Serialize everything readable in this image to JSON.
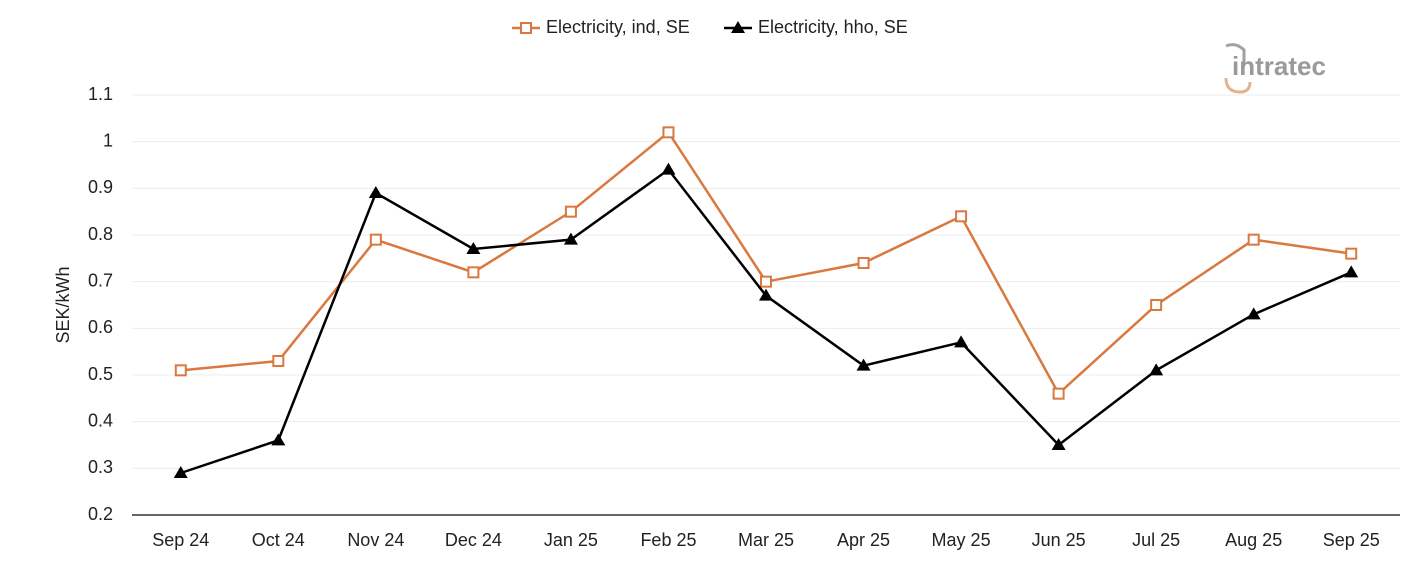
{
  "chart_data": {
    "type": "line",
    "y_label": "SEK/kWh",
    "watermark": "intratec",
    "categories": [
      "Sep 24",
      "Oct 24",
      "Nov 24",
      "Dec 24",
      "Jan 25",
      "Feb 25",
      "Mar 25",
      "Apr 25",
      "May 25",
      "Jun 25",
      "Jul 25",
      "Aug 25",
      "Sep 25"
    ],
    "series": [
      {
        "name": "Electricity, ind, SE",
        "color": "#d9783f",
        "marker": "square",
        "values": [
          0.51,
          0.53,
          0.79,
          0.72,
          0.85,
          1.02,
          0.7,
          0.74,
          0.84,
          0.46,
          0.65,
          0.79,
          0.76
        ]
      },
      {
        "name": "Electricity, hho, SE",
        "color": "#000000",
        "marker": "triangle",
        "values": [
          0.29,
          0.36,
          0.89,
          0.77,
          0.79,
          0.94,
          0.67,
          0.52,
          0.57,
          0.35,
          0.51,
          0.63,
          0.72
        ]
      }
    ],
    "ylim": [
      0.2,
      1.1
    ],
    "yticks": [
      0.2,
      0.3,
      0.4,
      0.5,
      0.6,
      0.7,
      0.8,
      0.9,
      1,
      1.1
    ],
    "grid": true,
    "legend": "top"
  }
}
